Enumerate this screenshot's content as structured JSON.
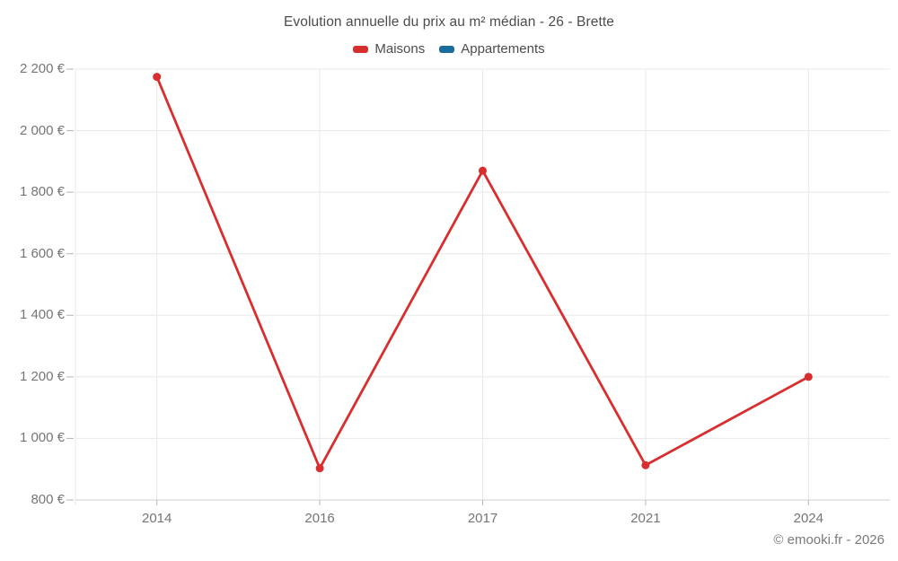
{
  "chart": {
    "title": "Evolution annuelle du prix au m² médian - 26 - Brette",
    "footer": "© emooki.fr - 2026"
  },
  "chart_data": {
    "type": "line",
    "title": "Evolution annuelle du prix au m² médian - 26 - Brette",
    "xlabel": "",
    "ylabel": "",
    "categories": [
      "2014",
      "2016",
      "2017",
      "2021",
      "2024"
    ],
    "series": [
      {
        "name": "Maisons",
        "color": "#d92e2e",
        "values": [
          2175,
          903,
          1870,
          913,
          1200
        ]
      },
      {
        "name": "Appartements",
        "color": "#1b6d9e",
        "values": [
          null,
          null,
          null,
          null,
          null
        ]
      }
    ],
    "ylim": [
      800,
      2200
    ],
    "y_tick_step": 200,
    "y_tick_labels": [
      "800 €",
      "1 000 €",
      "1 200 €",
      "1 400 €",
      "1 600 €",
      "1 800 €",
      "2 000 €",
      "2 200 €"
    ],
    "grid": true,
    "legend_position": "top",
    "colors": {
      "grid_line": "#e8e8e8",
      "axis_line": "#cfcfcf",
      "tick_mark": "#b5b5b5",
      "title_text": "#4c4c4c",
      "axis_text": "#757575"
    }
  }
}
